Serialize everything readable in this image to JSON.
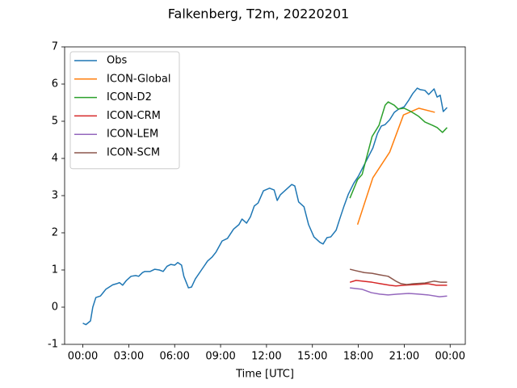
{
  "chart_data": {
    "type": "line",
    "title": "Falkenberg, T2m, 20220201",
    "xlabel": "Time [UTC]",
    "xlim": [
      -1.19,
      24.99
    ],
    "ylim": [
      -1,
      7
    ],
    "xticks": [
      {
        "value": 0,
        "label": "00:00"
      },
      {
        "value": 3,
        "label": "03:00"
      },
      {
        "value": 6,
        "label": "06:00"
      },
      {
        "value": 9,
        "label": "09:00"
      },
      {
        "value": 12,
        "label": "12:00"
      },
      {
        "value": 15,
        "label": "15:00"
      },
      {
        "value": 18,
        "label": "18:00"
      },
      {
        "value": 21,
        "label": "21:00"
      },
      {
        "value": 24,
        "label": "00:00"
      }
    ],
    "yticks": [
      -1,
      0,
      1,
      2,
      3,
      4,
      5,
      6,
      7
    ],
    "legend": "upper left",
    "series": [
      {
        "name": "Obs",
        "color": "#1f77b4",
        "x": [
          0,
          0.2,
          0.5,
          0.65,
          0.85,
          1.15,
          1.5,
          1.95,
          2.2,
          2.4,
          2.6,
          2.85,
          3.15,
          3.45,
          3.65,
          3.9,
          4.05,
          4.4,
          4.7,
          5.0,
          5.25,
          5.5,
          5.75,
          6.0,
          6.2,
          6.45,
          6.6,
          6.9,
          7.1,
          7.35,
          7.75,
          8.15,
          8.45,
          8.7,
          9.1,
          9.45,
          9.85,
          10.2,
          10.4,
          10.7,
          10.95,
          11.2,
          11.45,
          11.8,
          12.2,
          12.5,
          12.7,
          12.9,
          13.25,
          13.65,
          13.85,
          14.1,
          14.45,
          14.75,
          15.1,
          15.5,
          15.7,
          15.95,
          16.2,
          16.55,
          16.8,
          17.05,
          17.35,
          17.7,
          18.0,
          18.35,
          18.65,
          18.95,
          19.25,
          19.5,
          19.75,
          20.05,
          20.35,
          20.65,
          21.0,
          21.3,
          21.55,
          21.85,
          22.05,
          22.35,
          22.6,
          22.95,
          23.15,
          23.35,
          23.55,
          23.8
        ],
        "values": [
          -0.43,
          -0.47,
          -0.37,
          0.0,
          0.26,
          0.3,
          0.48,
          0.6,
          0.63,
          0.66,
          0.59,
          0.72,
          0.83,
          0.85,
          0.83,
          0.93,
          0.96,
          0.96,
          1.02,
          1.0,
          0.96,
          1.1,
          1.15,
          1.13,
          1.2,
          1.13,
          0.83,
          0.52,
          0.54,
          0.76,
          1.0,
          1.24,
          1.35,
          1.48,
          1.78,
          1.85,
          2.1,
          2.22,
          2.37,
          2.26,
          2.43,
          2.72,
          2.8,
          3.13,
          3.2,
          3.15,
          2.87,
          3.02,
          3.15,
          3.3,
          3.26,
          2.83,
          2.7,
          2.22,
          1.89,
          1.74,
          1.7,
          1.87,
          1.89,
          2.07,
          2.39,
          2.7,
          3.04,
          3.33,
          3.52,
          3.8,
          4.04,
          4.28,
          4.67,
          4.87,
          4.91,
          5.04,
          5.24,
          5.33,
          5.39,
          5.57,
          5.74,
          5.89,
          5.85,
          5.83,
          5.72,
          5.87,
          5.65,
          5.7,
          5.26,
          5.37
        ]
      },
      {
        "name": "ICON-Global",
        "color": "#ff7f0e",
        "x": [
          17.95,
          18.95,
          20.05,
          20.95,
          21.95,
          23.0
        ],
        "values": [
          2.22,
          3.48,
          4.17,
          5.17,
          5.35,
          5.24
        ]
      },
      {
        "name": "ICON-D2",
        "color": "#2ca02c",
        "x": [
          17.45,
          17.95,
          18.25,
          18.9,
          19.35,
          19.75,
          19.95,
          20.35,
          20.6,
          21.0,
          21.35,
          21.6,
          21.95,
          22.35,
          22.85,
          23.15,
          23.5,
          23.8
        ],
        "values": [
          2.93,
          3.43,
          3.57,
          4.59,
          4.89,
          5.43,
          5.52,
          5.43,
          5.33,
          5.35,
          5.28,
          5.22,
          5.13,
          4.98,
          4.89,
          4.83,
          4.7,
          4.83
        ]
      },
      {
        "name": "ICON-CRM",
        "color": "#d62728",
        "x": [
          17.45,
          17.85,
          18.25,
          18.9,
          19.45,
          20.05,
          20.45,
          21.0,
          21.85,
          22.55,
          23.1,
          23.8
        ],
        "values": [
          0.67,
          0.72,
          0.7,
          0.67,
          0.63,
          0.59,
          0.57,
          0.59,
          0.61,
          0.63,
          0.59,
          0.59
        ]
      },
      {
        "name": "ICON-LEM",
        "color": "#9467bd",
        "x": [
          17.45,
          18.25,
          18.85,
          19.4,
          19.95,
          20.55,
          21.3,
          21.95,
          22.55,
          23.3,
          23.8
        ],
        "values": [
          0.52,
          0.48,
          0.39,
          0.35,
          0.33,
          0.35,
          0.37,
          0.35,
          0.33,
          0.28,
          0.3
        ]
      },
      {
        "name": "ICON-SCM",
        "color": "#8c564b",
        "x": [
          17.45,
          17.85,
          18.4,
          18.9,
          19.4,
          19.95,
          20.45,
          20.8,
          21.15,
          21.6,
          22.35,
          22.95,
          23.4,
          23.8
        ],
        "values": [
          1.02,
          0.98,
          0.93,
          0.91,
          0.87,
          0.83,
          0.7,
          0.63,
          0.61,
          0.63,
          0.65,
          0.7,
          0.67,
          0.67
        ]
      }
    ]
  }
}
